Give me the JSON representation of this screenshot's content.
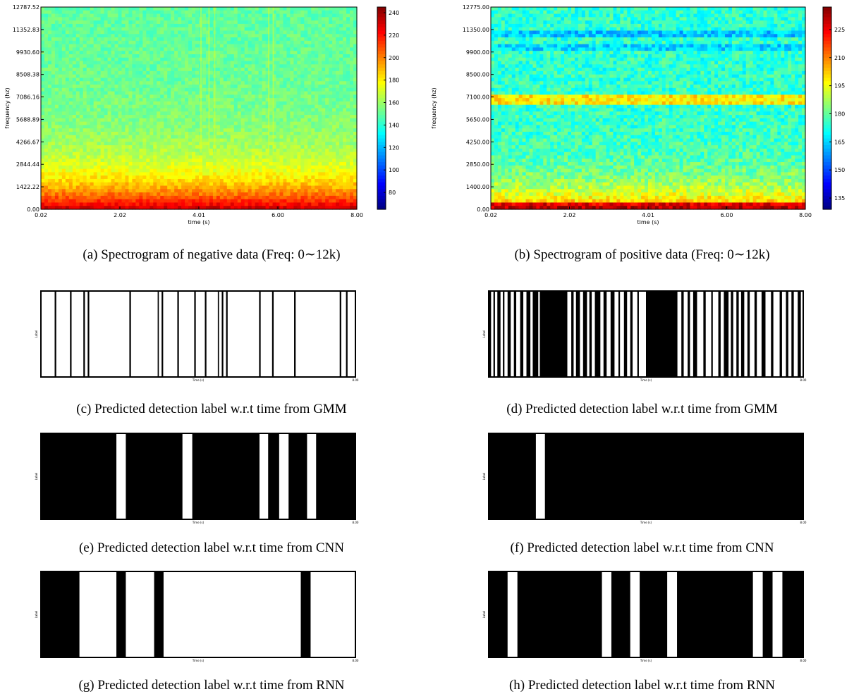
{
  "figure": {
    "captions": {
      "a": "(a) Spectrogram of negative data (Freq: 0∼12k)",
      "b": "(b) Spectrogram of positive data (Freq: 0∼12k)",
      "c": "(c) Predicted detection label w.r.t time from GMM",
      "d": "(d) Predicted detection label w.r.t time from GMM",
      "e": "(e) Predicted detection label w.r.t time from CNN",
      "f": "(f) Predicted detection label w.r.t time from CNN",
      "g": "(g) Predicted detection label w.r.t time from RNN",
      "h": "(h) Predicted detection label w.r.t time from RNN"
    }
  },
  "chart_data": [
    {
      "id": "a",
      "type": "heatmap",
      "xlabel": "time (s)",
      "ylabel": "frequency (hz)",
      "x_ticks": [
        "0.02",
        "2.02",
        "4.01",
        "6.00",
        "8.00"
      ],
      "y_ticks": [
        "0.00",
        "1422.22",
        "2844.44",
        "4266.67",
        "5688.89",
        "7086.16",
        "8508.38",
        "9930.60",
        "11352.83",
        "12787.52"
      ],
      "colorbar_ticks": [
        "80",
        "100",
        "120",
        "140",
        "160",
        "180",
        "200",
        "220",
        "240"
      ],
      "colorbar_range": [
        65,
        245
      ],
      "colormap": "jet"
    },
    {
      "id": "b",
      "type": "heatmap",
      "xlabel": "time (s)",
      "ylabel": "frequency (hz)",
      "x_ticks": [
        "0.02",
        "2.02",
        "4.01",
        "6.00",
        "8.00"
      ],
      "y_ticks": [
        "0.00",
        "1400.00",
        "2850.00",
        "4250.00",
        "5650.00",
        "7100.00",
        "8500.00",
        "9900.00",
        "11350.00",
        "12775.00"
      ],
      "colorbar_ticks": [
        "135",
        "150",
        "165",
        "180",
        "195",
        "210",
        "225"
      ],
      "colorbar_range": [
        129,
        237
      ],
      "colormap": "jet"
    },
    {
      "id": "c",
      "type": "bar",
      "xlabel": "Time (s)",
      "ylabel": "Label",
      "x_end": "8.00",
      "x_range": [
        0,
        8
      ],
      "positive_segments": [
        [
          0.35,
          0.39
        ],
        [
          0.74,
          0.78
        ],
        [
          1.08,
          1.12
        ],
        [
          1.19,
          1.23
        ],
        [
          2.25,
          2.29
        ],
        [
          2.97,
          3.0
        ],
        [
          3.07,
          3.11
        ],
        [
          3.47,
          3.51
        ],
        [
          3.9,
          3.94
        ],
        [
          4.17,
          4.21
        ],
        [
          4.5,
          4.53
        ],
        [
          4.6,
          4.64
        ],
        [
          4.71,
          4.75
        ],
        [
          5.55,
          5.59
        ],
        [
          5.88,
          5.92
        ],
        [
          6.44,
          6.48
        ],
        [
          7.6,
          7.64
        ],
        [
          7.76,
          7.8
        ]
      ]
    },
    {
      "id": "d",
      "type": "bar",
      "xlabel": "Time (s)",
      "ylabel": "Label",
      "x_end": "8.00",
      "x_range": [
        0,
        8
      ],
      "positive_segments": [
        [
          0.0,
          0.06
        ],
        [
          0.12,
          0.16
        ],
        [
          0.22,
          0.3
        ],
        [
          0.36,
          0.4
        ],
        [
          0.48,
          0.56
        ],
        [
          0.64,
          0.7
        ],
        [
          0.8,
          0.88
        ],
        [
          0.96,
          1.06
        ],
        [
          1.12,
          1.26
        ],
        [
          1.3,
          2.0
        ],
        [
          2.1,
          2.16
        ],
        [
          2.22,
          2.32
        ],
        [
          2.4,
          2.5
        ],
        [
          2.56,
          2.62
        ],
        [
          2.7,
          2.84
        ],
        [
          2.92,
          3.0
        ],
        [
          3.1,
          3.2
        ],
        [
          3.3,
          3.34
        ],
        [
          3.44,
          3.52
        ],
        [
          3.6,
          3.66
        ],
        [
          3.78,
          3.82
        ],
        [
          4.0,
          4.8
        ],
        [
          4.9,
          4.96
        ],
        [
          5.06,
          5.12
        ],
        [
          5.2,
          5.3
        ],
        [
          5.46,
          5.52
        ],
        [
          5.66,
          5.7
        ],
        [
          5.84,
          5.9
        ],
        [
          5.98,
          6.1
        ],
        [
          6.16,
          6.22
        ],
        [
          6.3,
          6.36
        ],
        [
          6.42,
          6.5
        ],
        [
          6.58,
          6.64
        ],
        [
          6.76,
          6.82
        ],
        [
          6.94,
          7.04
        ],
        [
          7.18,
          7.24
        ],
        [
          7.4,
          7.46
        ],
        [
          7.56,
          7.62
        ],
        [
          7.7,
          7.76
        ],
        [
          7.86,
          7.94
        ]
      ]
    },
    {
      "id": "e",
      "type": "bar",
      "xlabel": "Time (s)",
      "ylabel": "Label",
      "x_end": "8.00",
      "x_range": [
        0,
        8
      ],
      "positive_segments": [
        [
          0.0,
          1.92
        ],
        [
          2.16,
          3.6
        ],
        [
          3.85,
          5.56
        ],
        [
          5.78,
          6.06
        ],
        [
          6.3,
          6.77
        ],
        [
          7.0,
          8.0
        ]
      ]
    },
    {
      "id": "f",
      "type": "bar",
      "xlabel": "Time (s)",
      "ylabel": "Label",
      "x_end": "8.00",
      "x_range": [
        0,
        8
      ],
      "positive_segments": [
        [
          0.0,
          1.2
        ],
        [
          1.43,
          8.0
        ]
      ]
    },
    {
      "id": "g",
      "type": "bar",
      "xlabel": "Time (s)",
      "ylabel": "Label",
      "x_end": "8.00",
      "x_range": [
        0,
        8
      ],
      "positive_segments": [
        [
          0.0,
          0.98
        ],
        [
          1.92,
          2.16
        ],
        [
          2.88,
          3.12
        ],
        [
          6.61,
          6.86
        ]
      ]
    },
    {
      "id": "h",
      "type": "bar",
      "xlabel": "Time (s)",
      "ylabel": "Label",
      "x_end": "8.00",
      "x_range": [
        0,
        8
      ],
      "positive_segments": [
        [
          0.0,
          0.48
        ],
        [
          0.73,
          2.88
        ],
        [
          3.12,
          3.6
        ],
        [
          3.84,
          4.54
        ],
        [
          4.79,
          6.72
        ],
        [
          6.97,
          7.22
        ],
        [
          7.47,
          8.0
        ]
      ]
    }
  ]
}
